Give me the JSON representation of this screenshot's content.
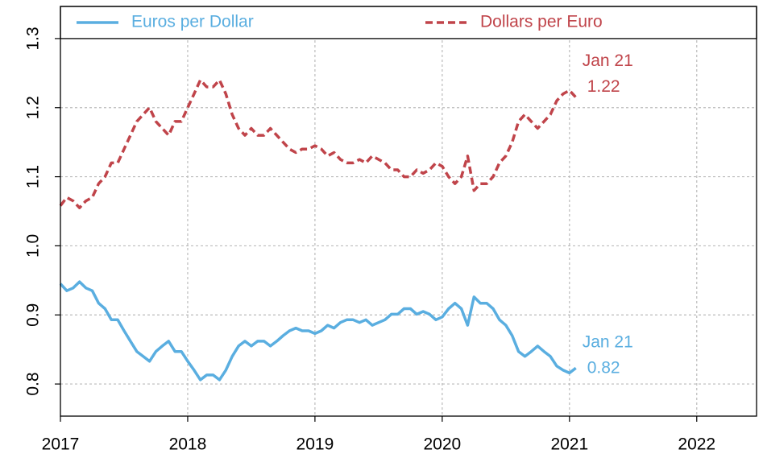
{
  "chart_data": {
    "type": "line",
    "x": [
      2017.0,
      2017.05,
      2017.1,
      2017.15,
      2017.2,
      2017.25,
      2017.3,
      2017.35,
      2017.4,
      2017.45,
      2017.5,
      2017.55,
      2017.6,
      2017.65,
      2017.7,
      2017.75,
      2017.8,
      2017.85,
      2017.9,
      2017.95,
      2018.0,
      2018.05,
      2018.1,
      2018.15,
      2018.2,
      2018.25,
      2018.3,
      2018.35,
      2018.4,
      2018.45,
      2018.5,
      2018.55,
      2018.6,
      2018.65,
      2018.7,
      2018.75,
      2018.8,
      2018.85,
      2018.9,
      2018.95,
      2019.0,
      2019.05,
      2019.1,
      2019.15,
      2019.2,
      2019.25,
      2019.3,
      2019.35,
      2019.4,
      2019.45,
      2019.5,
      2019.55,
      2019.6,
      2019.65,
      2019.7,
      2019.75,
      2019.8,
      2019.85,
      2019.9,
      2019.95,
      2020.0,
      2020.05,
      2020.1,
      2020.15,
      2020.2,
      2020.25,
      2020.3,
      2020.35,
      2020.4,
      2020.45,
      2020.5,
      2020.55,
      2020.6,
      2020.65,
      2020.7,
      2020.75,
      2020.8,
      2020.85,
      2020.9,
      2020.95,
      2021.0,
      2021.05
    ],
    "series": [
      {
        "name": "Euros per Dollar",
        "color": "#5aaee0",
        "linestyle": "solid",
        "values": [
          0.945,
          0.935,
          0.939,
          0.948,
          0.939,
          0.935,
          0.917,
          0.909,
          0.893,
          0.893,
          0.877,
          0.862,
          0.847,
          0.84,
          0.833,
          0.847,
          0.855,
          0.862,
          0.847,
          0.847,
          0.833,
          0.82,
          0.806,
          0.813,
          0.813,
          0.806,
          0.82,
          0.84,
          0.855,
          0.862,
          0.855,
          0.862,
          0.862,
          0.855,
          0.862,
          0.87,
          0.877,
          0.881,
          0.877,
          0.877,
          0.873,
          0.877,
          0.885,
          0.881,
          0.889,
          0.893,
          0.893,
          0.889,
          0.893,
          0.885,
          0.889,
          0.893,
          0.901,
          0.901,
          0.909,
          0.909,
          0.901,
          0.905,
          0.901,
          0.893,
          0.897,
          0.909,
          0.917,
          0.909,
          0.885,
          0.926,
          0.917,
          0.917,
          0.909,
          0.893,
          0.885,
          0.87,
          0.847,
          0.84,
          0.847,
          0.855,
          0.847,
          0.84,
          0.826,
          0.82,
          0.816,
          0.823
        ]
      },
      {
        "name": "Dollars per Euro",
        "color": "#c0444a",
        "linestyle": "dashed",
        "values": [
          1.058,
          1.07,
          1.065,
          1.055,
          1.065,
          1.07,
          1.09,
          1.1,
          1.12,
          1.12,
          1.14,
          1.16,
          1.18,
          1.19,
          1.2,
          1.18,
          1.17,
          1.16,
          1.18,
          1.18,
          1.2,
          1.22,
          1.24,
          1.23,
          1.23,
          1.24,
          1.22,
          1.19,
          1.17,
          1.16,
          1.17,
          1.16,
          1.16,
          1.17,
          1.16,
          1.15,
          1.14,
          1.135,
          1.14,
          1.14,
          1.145,
          1.14,
          1.13,
          1.135,
          1.125,
          1.12,
          1.12,
          1.125,
          1.12,
          1.13,
          1.125,
          1.12,
          1.11,
          1.11,
          1.1,
          1.1,
          1.11,
          1.105,
          1.11,
          1.12,
          1.115,
          1.1,
          1.09,
          1.1,
          1.13,
          1.08,
          1.09,
          1.09,
          1.1,
          1.12,
          1.13,
          1.15,
          1.18,
          1.19,
          1.18,
          1.17,
          1.18,
          1.19,
          1.21,
          1.22,
          1.225,
          1.215
        ]
      }
    ],
    "annotations": [
      {
        "label": "Jan 21",
        "value": 1.22,
        "color": "#c0444a"
      },
      {
        "label": "Jan 21",
        "value": 0.82,
        "color": "#5aaee0"
      }
    ],
    "xlim": [
      2017,
      2022.47
    ],
    "xticks": [
      2017,
      2018,
      2019,
      2020,
      2021,
      2022
    ],
    "ylim": [
      0.7535,
      1.3465
    ],
    "yticks": [
      0.8,
      0.9,
      {
        "value": 1,
        "label": "1.0"
      },
      1.1,
      1.2,
      1.3
    ],
    "grid": true,
    "legend": "top"
  }
}
